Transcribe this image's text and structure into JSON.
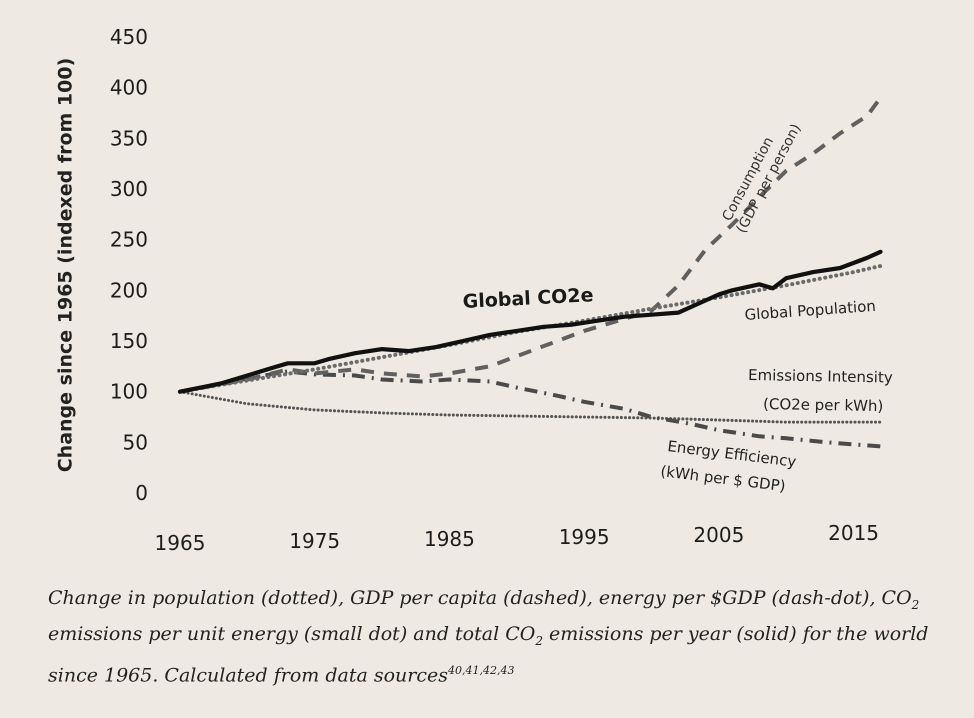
{
  "chart_data": {
    "type": "line",
    "ylabel": "Change since 1965 (indexed from 100)",
    "ylim": [
      0,
      450
    ],
    "yticks": [
      "0",
      "50",
      "100",
      "150",
      "200",
      "250",
      "300",
      "350",
      "400",
      "450"
    ],
    "xlim": [
      1965,
      2018
    ],
    "xticks": [
      "1965",
      "1975",
      "1985",
      "1995",
      "2005",
      "2015"
    ],
    "grid": false,
    "legend": "none",
    "series": [
      {
        "name": "Global CO2e",
        "style": "solid",
        "x": [
          1965,
          1968,
          1970,
          1972,
          1973,
          1975,
          1976,
          1978,
          1980,
          1982,
          1984,
          1986,
          1988,
          1990,
          1992,
          1994,
          1996,
          1998,
          2000,
          2002,
          2004,
          2005,
          2006,
          2008,
          2009,
          2010,
          2012,
          2014,
          2016,
          2017
        ],
        "y": [
          100,
          108,
          116,
          124,
          128,
          128,
          132,
          138,
          142,
          140,
          144,
          150,
          156,
          160,
          164,
          166,
          170,
          174,
          176,
          178,
          190,
          196,
          200,
          206,
          202,
          212,
          218,
          222,
          232,
          238
        ]
      },
      {
        "name": "Global Population",
        "style": "dotted",
        "x": [
          1965,
          1970,
          1975,
          1980,
          1985,
          1990,
          1995,
          2000,
          2005,
          2010,
          2015,
          2017
        ],
        "y": [
          100,
          111,
          122,
          134,
          146,
          159,
          170,
          182,
          193,
          205,
          218,
          224
        ]
      },
      {
        "name": "Consumption (GDP per person)",
        "style": "dashed",
        "x": [
          1965,
          1970,
          1973,
          1975,
          1978,
          1980,
          1983,
          1985,
          1988,
          1990,
          1995,
          2000,
          2002,
          2004,
          2006,
          2008,
          2010,
          2012,
          2014,
          2016,
          2017
        ],
        "y": [
          100,
          112,
          122,
          118,
          122,
          118,
          115,
          118,
          125,
          135,
          160,
          180,
          205,
          240,
          265,
          292,
          318,
          335,
          355,
          372,
          390
        ]
      },
      {
        "name": "Energy Efficiency (kWh per $ GDP)",
        "style": "dash-dot",
        "x": [
          1965,
          1970,
          1973,
          1975,
          1978,
          1980,
          1983,
          1985,
          1988,
          1990,
          1993,
          1995,
          1998,
          2000,
          2003,
          2005,
          2008,
          2010,
          2013,
          2015,
          2017
        ],
        "y": [
          100,
          113,
          120,
          117,
          116,
          112,
          110,
          112,
          110,
          104,
          96,
          90,
          83,
          75,
          68,
          62,
          56,
          54,
          50,
          48,
          46
        ]
      },
      {
        "name": "Emissions Intensity (CO2e per kWh)",
        "style": "small-dot",
        "x": [
          1965,
          1970,
          1975,
          1980,
          1985,
          1990,
          1995,
          2000,
          2005,
          2010,
          2015,
          2017
        ],
        "y": [
          100,
          88,
          82,
          79,
          77,
          76,
          75,
          74,
          72,
          70,
          70,
          70
        ]
      }
    ]
  },
  "annotations": {
    "co2": "Global CO2e",
    "population": "Global Population",
    "consumption_line1": "Consumption",
    "consumption_line2": "(GDP per person)",
    "intensity_line1": "Emissions Intensity",
    "intensity_line2": "(CO2e per kWh)",
    "efficiency_line1": "Energy Efficiency",
    "efficiency_line2": "(kWh per $ GDP)"
  },
  "caption": {
    "line1": "Change in population (dotted), GDP per capita (dashed), energy per $GDP (dash-dot), CO",
    "sub_a": "2",
    "line2a": "emissions per unit energy (small dot) and total CO",
    "sub_b": "2",
    "line2b": " emissions per year (solid) for the world",
    "line3": "since 1965. Calculated from data sources",
    "refs": "40,41,42,43"
  }
}
